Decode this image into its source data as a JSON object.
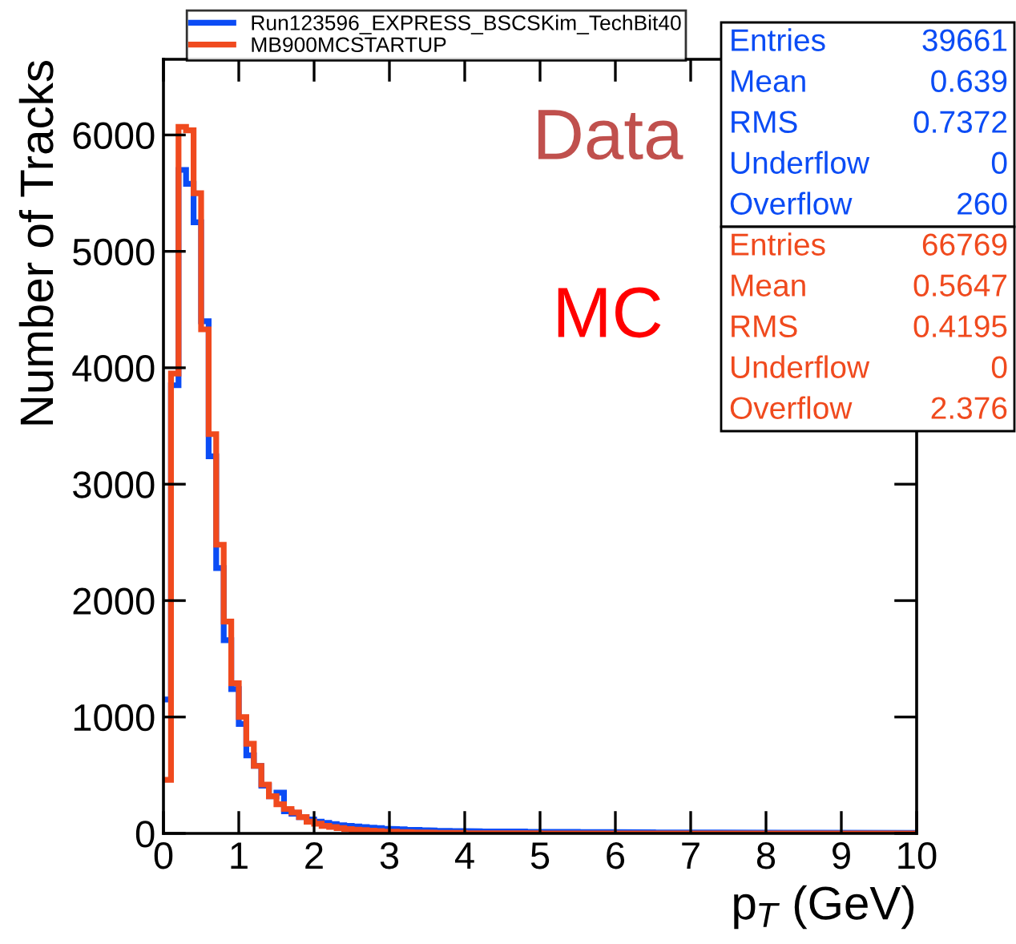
{
  "chart_data": {
    "type": "histogram",
    "xlabel": "p$_{T}$ (GeV)",
    "ylabel": "Number of Tracks",
    "bins": [
      0,
      0.1,
      0.2,
      0.3,
      0.4,
      0.5,
      0.6,
      0.7,
      0.8,
      0.9,
      1,
      1.1,
      1.2,
      1.3,
      1.4,
      1.5,
      1.6,
      1.7,
      1.8,
      1.9,
      2,
      2.1,
      2.2,
      2.3,
      2.4,
      2.5,
      2.6,
      2.7,
      2.8,
      2.9,
      3,
      3.1,
      3.2,
      3.3,
      3.4,
      3.5,
      3.6,
      3.7,
      3.8,
      3.9,
      4,
      4.1,
      4.2,
      4.3,
      4.4,
      4.5,
      4.6,
      4.7,
      4.8,
      4.9,
      5,
      5.1,
      5.2,
      5.3,
      5.4,
      5.5,
      5.6,
      5.7,
      5.8,
      5.9,
      6,
      6.1,
      6.2,
      6.3,
      6.4,
      6.5,
      6.6,
      6.7,
      6.8,
      6.9,
      7,
      7.1,
      7.2,
      7.3,
      7.4,
      7.5,
      7.6,
      7.7,
      7.8,
      7.9,
      8,
      8.1,
      8.2,
      8.3,
      8.4,
      8.5,
      8.6,
      8.7,
      8.8,
      8.9,
      9,
      9.1,
      9.2,
      9.3,
      9.4,
      9.5,
      9.6,
      9.7,
      9.8,
      9.9,
      10
    ],
    "series": [
      {
        "name": "Run123596_EXPRESS_BSCSKim_TechBit40",
        "color": "#0b4cf5",
        "values": [
          1150,
          3850,
          5700,
          5580,
          5250,
          4400,
          3240,
          2280,
          1660,
          1240,
          940,
          670,
          580,
          410,
          320,
          350,
          190,
          170,
          140,
          120,
          100,
          90,
          80,
          70,
          65,
          60,
          55,
          50,
          45,
          40,
          38,
          35,
          32,
          30,
          28,
          26,
          24,
          22,
          21,
          20,
          19,
          19,
          18,
          18,
          17,
          17,
          16,
          16,
          15,
          15,
          14,
          14,
          13,
          13,
          13,
          12,
          12,
          12,
          11,
          11,
          11,
          10,
          10,
          10,
          10,
          9,
          9,
          9,
          9,
          9,
          8,
          8,
          8,
          8,
          8,
          8,
          7,
          7,
          7,
          7,
          7,
          7,
          6,
          6,
          6,
          6,
          6,
          6,
          6,
          5,
          5,
          5,
          5,
          5,
          5,
          5,
          5,
          4,
          4,
          4
        ]
      },
      {
        "name": "MB900MCSTARTUP",
        "color": "#f04a1e",
        "values": [
          460,
          3950,
          6070,
          6040,
          5500,
          4330,
          3430,
          2480,
          1820,
          1290,
          1000,
          770,
          580,
          420,
          320,
          250,
          210,
          180,
          140,
          100,
          83,
          64,
          55,
          46,
          37,
          32,
          28,
          23,
          20,
          17,
          15,
          12,
          10,
          9,
          8,
          7,
          6,
          5,
          4,
          4,
          3,
          3,
          2,
          2,
          2,
          1,
          1,
          1,
          1,
          1,
          0,
          0,
          0,
          0,
          0,
          0,
          0,
          0,
          0,
          0,
          0,
          0,
          0,
          0,
          0,
          0,
          0,
          0,
          0,
          0,
          0,
          0,
          0,
          0,
          0,
          0,
          0,
          0,
          0,
          0,
          0,
          0,
          0,
          0,
          0,
          0,
          0,
          0,
          0,
          0,
          0,
          0,
          0,
          0,
          0,
          0,
          0,
          0,
          0,
          0
        ]
      }
    ],
    "xlim": [
      0,
      10
    ],
    "xticks": [
      0,
      1,
      2,
      3,
      4,
      5,
      6,
      7,
      8,
      9,
      10
    ],
    "ylim": [
      0,
      6650
    ],
    "yticks": [
      0,
      1000,
      2000,
      3000,
      4000,
      5000,
      6000
    ],
    "grid": false,
    "legend": "top left",
    "annotations": [
      "Data",
      "MC",
      "Entries",
      "39661",
      "Mean",
      "0.639",
      "RMS",
      "0.7372",
      "Underflow",
      "0",
      "Overflow",
      "260",
      "Entries",
      "66769",
      "Mean",
      "0.5647",
      "RMS",
      "0.4195",
      "Underflow",
      "0",
      "Overflow",
      "2.376"
    ]
  }
}
